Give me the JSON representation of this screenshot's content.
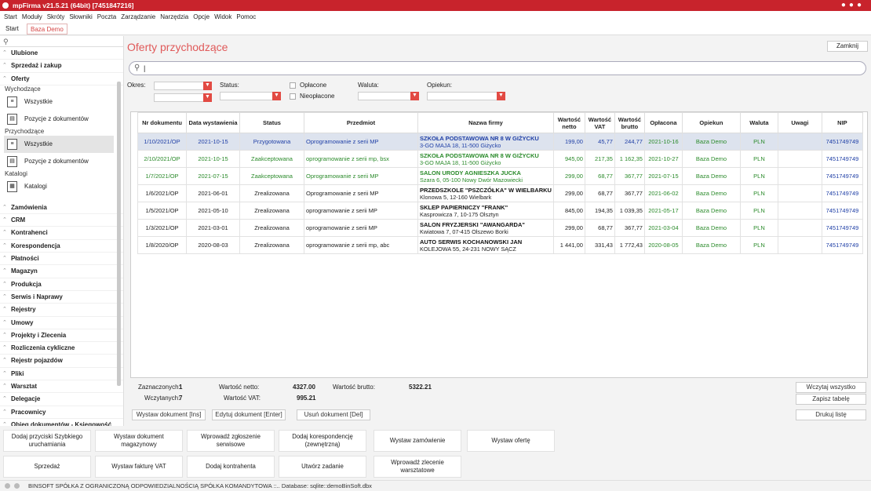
{
  "window": {
    "title": "mpFirma v21.5.21 (64bit) [7451847216]"
  },
  "menu": [
    "Start",
    "Moduły",
    "Skróty",
    "Słowniki",
    "Poczta",
    "Zarządzanie",
    "Narzędzia",
    "Opcje",
    "Widok",
    "Pomoc"
  ],
  "tabs": {
    "start": "Start",
    "baza": "Baza Demo"
  },
  "sidebar": {
    "sections_top": [
      "Ulubione",
      "Sprzedaż i zakup",
      "Oferty"
    ],
    "group_wychodzace": "Wychodzące",
    "wychodzace_items": [
      "Wszystkie",
      "Pozycje z dokumentów"
    ],
    "group_przychodzace": "Przychodzące",
    "przychodzace_items": [
      "Wszystkie",
      "Pozycje z dokumentów"
    ],
    "group_katalogi": "Katalogi",
    "katalogi_items": [
      "Katalogi"
    ],
    "sections_bottom": [
      "Zamówienia",
      "CRM",
      "Kontrahenci",
      "Korespondencja",
      "Płatności",
      "Magazyn",
      "Produkcja",
      "Serwis i Naprawy",
      "Rejestry",
      "Umowy",
      "Projekty i Zlecenia",
      "Rozliczenia cykliczne",
      "Rejestr pojazdów",
      "Pliki",
      "Warsztat",
      "Delegacje",
      "Pracownicy",
      "Obieg dokumentów - Księgowość"
    ]
  },
  "main": {
    "title": "Oferty przychodzące",
    "close_label": "Zamknij",
    "search_value": "|",
    "filters": {
      "okres": "Okres:",
      "status": "Status:",
      "oplacone": "Opłacone",
      "nieoplacone": "Nieopłacone",
      "waluta": "Waluta:",
      "opiekun": "Opiekun:"
    }
  },
  "table": {
    "columns": [
      "Nr dokumentu",
      "Data wystawienia",
      "Status",
      "Przedmiot",
      "Nazwa firmy",
      "Wartość netto",
      "Wartość VAT",
      "Wartość brutto",
      "Opłacona",
      "Opiekun",
      "Waluta",
      "Uwagi",
      "NIP"
    ],
    "rows": [
      {
        "style": "blue",
        "nr": "1/10/2021/OP",
        "data": "2021-10-15",
        "status": "Przygotowana",
        "przedmiot": "Oprogramowanie z serii MP",
        "firma": "SZKOŁA PODSTAWOWA NR 8 W GIŻYCKU",
        "adres": "3-GO MAJA 18, 11-500 Giżycko",
        "netto": "199,00",
        "vat": "45,77",
        "brutto": "244,77",
        "oplacona": "2021-10-16",
        "opiekun": "Baza Demo",
        "waluta": "PLN",
        "uwagi": "",
        "nip": "7451749749"
      },
      {
        "style": "green",
        "nr": "2/10/2021/OP",
        "data": "2021-10-15",
        "status": "Zaakceptowana",
        "przedmiot": "oprogramowanie z serii mp, bsx",
        "firma": "SZKOŁA PODSTAWOWA NR 8 W GIŻYCKU",
        "adres": "3-GO MAJA 18, 11-500 Giżycko",
        "netto": "945,00",
        "vat": "217,35",
        "brutto": "1 162,35",
        "oplacona": "2021-10-27",
        "opiekun": "Baza Demo",
        "waluta": "PLN",
        "uwagi": "",
        "nip": "7451749749"
      },
      {
        "style": "green",
        "nr": "1/7/2021/OP",
        "data": "2021-07-15",
        "status": "Zaakceptowana",
        "przedmiot": "Oprogramowanie z serii MP",
        "firma": "SALON URODY AGNIESZKA JUCKA",
        "adres": "Szara 6, 05-100 Nowy Dwór Mazowiecki",
        "netto": "299,00",
        "vat": "68,77",
        "brutto": "367,77",
        "oplacona": "2021-07-15",
        "opiekun": "Baza Demo",
        "waluta": "PLN",
        "uwagi": "",
        "nip": "7451749749"
      },
      {
        "style": "dark",
        "nr": "1/6/2021/OP",
        "data": "2021-06-01",
        "status": "Zrealizowana",
        "przedmiot": "Oprogramowanie z serii MP",
        "firma": "PRZEDSZKOLE \"PSZCZÓŁKA\" W WIELBARKU",
        "adres": "Klonowa 5, 12-160 Wielbark",
        "netto": "299,00",
        "vat": "68,77",
        "brutto": "367,77",
        "oplacona": "2021-06-02",
        "opiekun": "Baza Demo",
        "waluta": "PLN",
        "uwagi": "",
        "nip": "7451749749"
      },
      {
        "style": "dark",
        "nr": "1/5/2021/OP",
        "data": "2021-05-10",
        "status": "Zrealizowana",
        "przedmiot": "oprogramowanie z serii MP",
        "firma": "SKLEP PAPIERNICZY \"FRANK\"",
        "adres": "Kasprowicza 7, 10-175 Olsztyn",
        "netto": "845,00",
        "vat": "194,35",
        "brutto": "1 039,35",
        "oplacona": "2021-05-17",
        "opiekun": "Baza Demo",
        "waluta": "PLN",
        "uwagi": "",
        "nip": "7451749749"
      },
      {
        "style": "dark",
        "nr": "1/3/2021/OP",
        "data": "2021-03-01",
        "status": "Zrealizowana",
        "przedmiot": "oprogramowanie z serii MP",
        "firma": "SALON FRYZJERSKI \"AWANGARDA\"",
        "adres": "Kwiatowa 7, 07-415 Olszewo Borki",
        "netto": "299,00",
        "vat": "68,77",
        "brutto": "367,77",
        "oplacona": "2021-03-04",
        "opiekun": "Baza Demo",
        "waluta": "PLN",
        "uwagi": "",
        "nip": "7451749749"
      },
      {
        "style": "dark",
        "nr": "1/8/2020/OP",
        "data": "2020-08-03",
        "status": "Zrealizowana",
        "przedmiot": "oprogramowanie z serii mp, abc",
        "firma": "AUTO SERWIS KOCHANOWSKI JAN",
        "adres": "KOLEJOWA 55, 24-231 NOWY SĄCZ",
        "netto": "1 441,00",
        "vat": "331,43",
        "brutto": "1 772,43",
        "oplacona": "2020-08-05",
        "opiekun": "Baza Demo",
        "waluta": "PLN",
        "uwagi": "",
        "nip": "7451749749"
      }
    ]
  },
  "summary": {
    "zaznaczonych_label": "Zaznaczonych:",
    "zaznaczonych": "1",
    "wczytanych_label": "Wczytanych:",
    "wczytanych": "7",
    "netto_label": "Wartość netto:",
    "netto": "4327.00",
    "vat_label": "Wartość VAT:",
    "vat": "995.21",
    "brutto_label": "Wartość brutto:",
    "brutto": "5322.21"
  },
  "actions": {
    "wystaw": "Wystaw dokument [Ins]",
    "edytuj": "Edytuj dokument [Enter]",
    "usun": "Usuń dokument [Del]",
    "wczytaj": "Wczytaj wszystko",
    "zapisz": "Zapisz tabelę",
    "drukuj": "Drukuj listę"
  },
  "quick": [
    "Dodaj przyciski Szybkiego uruchamiania",
    "Wystaw dokument magazynowy",
    "Wprowadź zgłoszenie serwisowe",
    "Dodaj korespondencję (zewnętrzną)",
    "Wystaw zamówienie",
    "Wystaw ofertę",
    "Sprzedaż",
    "Wystaw fakturę VAT",
    "Dodaj kontrahenta",
    "Utwórz zadanie",
    "Wprowadź zlecenie warsztatowe"
  ],
  "statusbar": "BINSOFT SPÓŁKA Z OGRANICZONĄ ODPOWIEDZIALNOŚCIĄ SPÓŁKA KOMANDYTOWA ::.. Database: sqlite::demoBinSoft.dbx",
  "colors": {
    "accent": "#c8232c",
    "title": "#e05a5a",
    "blue_text": "#1f3fa6",
    "green_text": "#2a8a2a"
  }
}
